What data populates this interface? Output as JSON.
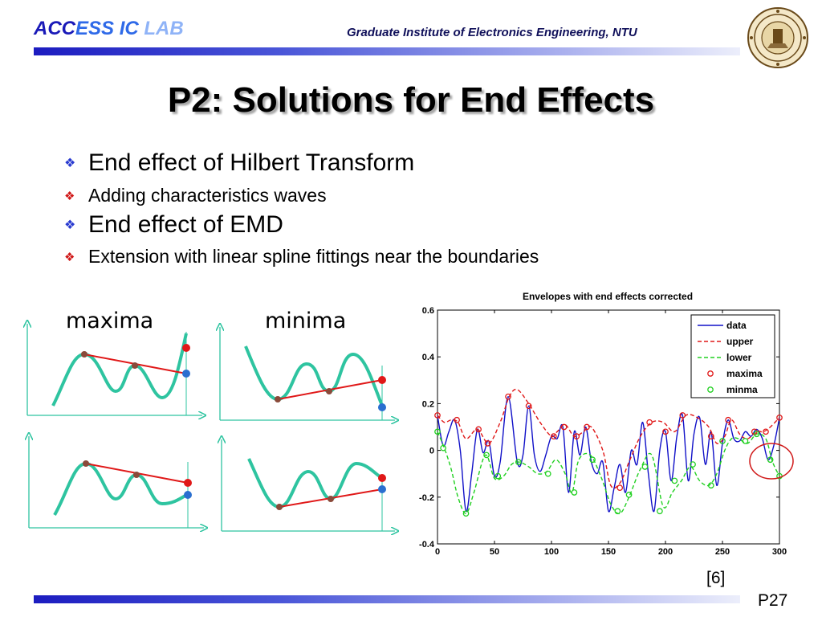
{
  "header": {
    "lab_part1": "ACC",
    "lab_part2": "ESS IC ",
    "lab_part3": "LAB",
    "institute": "Graduate Institute of Electronics Engineering, NTU"
  },
  "slide_title": "P2: Solutions for End Effects",
  "bullets": [
    {
      "level": 1,
      "text": "End effect of Hilbert Transform"
    },
    {
      "level": 2,
      "text": "Adding characteristics waves"
    },
    {
      "level": 1,
      "text": "End effect of EMD"
    },
    {
      "level": 2,
      "text": "Extension with linear spline fittings near the boundaries"
    }
  ],
  "sketch_labels": {
    "maxima": "maxima",
    "minima": "minima"
  },
  "colors": {
    "curve": "#2ec4a0",
    "line": "#e01818",
    "point_red": "#e01818",
    "point_blue": "#2a6fd0",
    "extreme_point": "#8a4a3a",
    "data": "#1010c8",
    "upper": "#e01818",
    "lower": "#20d020"
  },
  "chart_data": {
    "type": "line",
    "title": "Envelopes with end effects corrected",
    "xlabel": "",
    "ylabel": "",
    "xlim": [
      0,
      300
    ],
    "ylim": [
      -0.4,
      0.6
    ],
    "xticks": [
      0,
      50,
      100,
      150,
      200,
      250,
      300
    ],
    "yticks": [
      -0.4,
      -0.2,
      0,
      0.2,
      0.4,
      0.6
    ],
    "xtick_labels": [
      "0",
      "50",
      "100",
      "150",
      "200",
      "250",
      "300"
    ],
    "ytick_labels": [
      "-0.4",
      "-0.2",
      "0",
      "0.2",
      "0.4",
      "0.6"
    ],
    "legend": [
      "data",
      "upper",
      "lower",
      "maxima",
      "minma"
    ],
    "legend_position": "top-right",
    "series": [
      {
        "name": "data",
        "style": "solid",
        "x": [
          0,
          5,
          10,
          15,
          20,
          25,
          30,
          35,
          40,
          45,
          50,
          55,
          62,
          70,
          75,
          80,
          85,
          90,
          95,
          100,
          105,
          110,
          115,
          120,
          125,
          130,
          135,
          140,
          145,
          150,
          155,
          160,
          165,
          170,
          175,
          180,
          185,
          190,
          195,
          200,
          205,
          210,
          215,
          220,
          225,
          230,
          235,
          240,
          245,
          250,
          255,
          260,
          265,
          270,
          275,
          280,
          285,
          290,
          295,
          300
        ],
        "y": [
          0.15,
          0.02,
          0.08,
          0.13,
          0.0,
          -0.26,
          -0.1,
          0.09,
          -0.01,
          0.04,
          -0.11,
          -0.05,
          0.23,
          -0.05,
          -0.02,
          0.19,
          -0.02,
          -0.09,
          -0.02,
          0.06,
          0.05,
          0.1,
          -0.18,
          0.08,
          -0.02,
          0.1,
          -0.05,
          -0.1,
          -0.05,
          -0.26,
          -0.16,
          -0.06,
          -0.18,
          0.0,
          -0.06,
          0.12,
          -0.1,
          -0.26,
          0.0,
          0.08,
          -0.13,
          0.06,
          0.15,
          -0.13,
          0.07,
          0.14,
          -0.06,
          0.08,
          -0.15,
          0.03,
          0.13,
          0.05,
          0.04,
          0.08,
          0.06,
          0.09,
          0.05,
          -0.04,
          0.02,
          0.14
        ]
      },
      {
        "name": "upper",
        "style": "dashed",
        "x": [
          0,
          6,
          12,
          18,
          25,
          35,
          45,
          55,
          63,
          70,
          80,
          90,
          100,
          105,
          112,
          120,
          128,
          135,
          145,
          152,
          160,
          168,
          178,
          188,
          198,
          208,
          218,
          228,
          238,
          245,
          252,
          258,
          265,
          272,
          280,
          286,
          292,
          300
        ],
        "y": [
          0.15,
          0.12,
          0.13,
          0.12,
          0.05,
          0.09,
          0.03,
          0.12,
          0.23,
          0.26,
          0.2,
          0.12,
          0.06,
          0.08,
          0.11,
          0.06,
          0.08,
          0.1,
          0.0,
          -0.15,
          -0.14,
          -0.05,
          0.06,
          0.12,
          0.12,
          0.08,
          0.15,
          0.14,
          0.1,
          0.03,
          0.06,
          0.13,
          0.07,
          0.05,
          0.08,
          0.08,
          0.1,
          0.14
        ]
      },
      {
        "name": "lower",
        "style": "dashed",
        "x": [
          0,
          6,
          12,
          18,
          25,
          32,
          42,
          50,
          58,
          65,
          72,
          80,
          88,
          96,
          104,
          112,
          118,
          124,
          134,
          144,
          152,
          160,
          168,
          178,
          188,
          198,
          206,
          214,
          222,
          230,
          238,
          245,
          252,
          258,
          264,
          272,
          280,
          288,
          294,
          300
        ],
        "y": [
          0.08,
          0.01,
          -0.08,
          -0.2,
          -0.27,
          -0.18,
          -0.02,
          -0.12,
          -0.11,
          -0.06,
          -0.05,
          -0.07,
          -0.1,
          -0.09,
          -0.04,
          -0.1,
          -0.18,
          -0.04,
          -0.02,
          -0.12,
          -0.23,
          -0.27,
          -0.2,
          -0.08,
          -0.02,
          -0.24,
          -0.18,
          -0.13,
          -0.07,
          -0.13,
          -0.15,
          -0.1,
          0.0,
          0.05,
          0.05,
          0.03,
          0.07,
          0.05,
          -0.05,
          -0.11
        ]
      },
      {
        "name": "maxima",
        "style": "markers",
        "x": [
          0,
          17,
          36,
          44,
          62,
          80,
          102,
          111,
          122,
          131,
          160,
          186,
          200,
          215,
          240,
          255,
          278,
          288,
          300
        ],
        "y": [
          0.15,
          0.13,
          0.09,
          0.03,
          0.23,
          0.19,
          0.06,
          0.1,
          0.06,
          0.1,
          -0.16,
          0.12,
          0.08,
          0.15,
          0.06,
          0.13,
          0.08,
          0.08,
          0.14
        ]
      },
      {
        "name": "minma",
        "style": "markers",
        "x": [
          0,
          5,
          25,
          43,
          53,
          71,
          97,
          120,
          136,
          158,
          168,
          182,
          195,
          208,
          224,
          240,
          250,
          270,
          280,
          292,
          300
        ],
        "y": [
          0.08,
          0.01,
          -0.27,
          -0.02,
          -0.11,
          -0.05,
          -0.1,
          -0.18,
          -0.04,
          -0.26,
          -0.19,
          -0.07,
          -0.26,
          -0.13,
          -0.06,
          -0.15,
          0.04,
          0.04,
          0.07,
          -0.04,
          -0.11
        ]
      }
    ]
  },
  "reference": "[6]",
  "page_number": "P27"
}
